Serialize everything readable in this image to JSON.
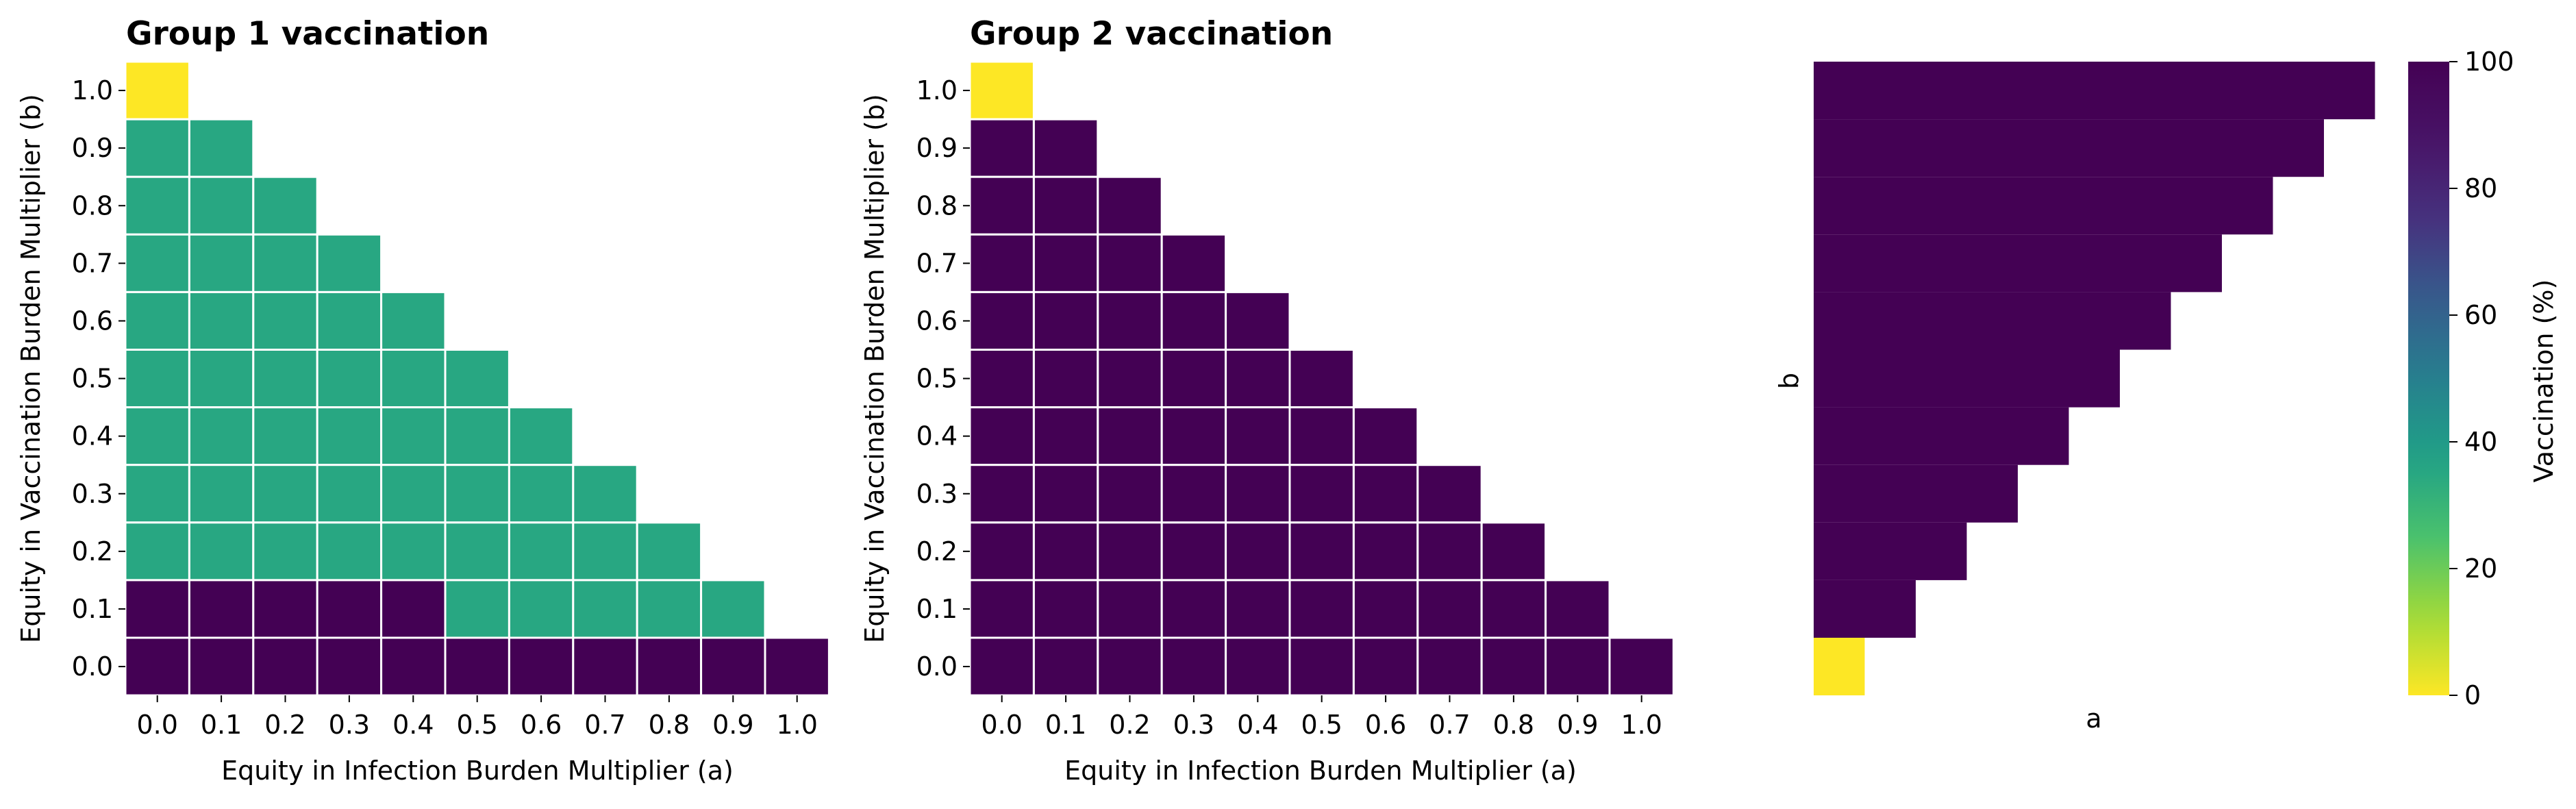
{
  "chart_data": [
    {
      "type": "heatmap",
      "title": "Group 1 vaccination",
      "xlabel": "Equity in Infection Burden Multiplier (a)",
      "ylabel": "Equity in Vaccination Burden Multiplier (b)",
      "x": [
        "0.0",
        "0.1",
        "0.2",
        "0.3",
        "0.4",
        "0.5",
        "0.6",
        "0.7",
        "0.8",
        "0.9",
        "1.0"
      ],
      "y": [
        "1.0",
        "0.9",
        "0.8",
        "0.7",
        "0.6",
        "0.5",
        "0.4",
        "0.3",
        "0.2",
        "0.1",
        "0.0"
      ],
      "values": [
        [
          0,
          null,
          null,
          null,
          null,
          null,
          null,
          null,
          null,
          null,
          null
        ],
        [
          35,
          35,
          null,
          null,
          null,
          null,
          null,
          null,
          null,
          null,
          null
        ],
        [
          35,
          35,
          35,
          null,
          null,
          null,
          null,
          null,
          null,
          null,
          null
        ],
        [
          35,
          35,
          35,
          35,
          null,
          null,
          null,
          null,
          null,
          null,
          null
        ],
        [
          35,
          35,
          35,
          35,
          35,
          null,
          null,
          null,
          null,
          null,
          null
        ],
        [
          35,
          35,
          35,
          35,
          35,
          35,
          null,
          null,
          null,
          null,
          null
        ],
        [
          35,
          35,
          35,
          35,
          35,
          35,
          35,
          null,
          null,
          null,
          null
        ],
        [
          35,
          35,
          35,
          35,
          35,
          35,
          35,
          35,
          null,
          null,
          null
        ],
        [
          35,
          35,
          35,
          35,
          35,
          35,
          35,
          35,
          35,
          null,
          null
        ],
        [
          100,
          100,
          100,
          100,
          100,
          35,
          35,
          35,
          35,
          35,
          null
        ],
        [
          100,
          100,
          100,
          100,
          100,
          100,
          100,
          100,
          100,
          100,
          100
        ]
      ]
    },
    {
      "type": "heatmap",
      "title": "Group 2 vaccination",
      "xlabel": "Equity in Infection Burden Multiplier (a)",
      "ylabel": "Equity in Vaccination Burden Multiplier (b)",
      "x": [
        "0.0",
        "0.1",
        "0.2",
        "0.3",
        "0.4",
        "0.5",
        "0.6",
        "0.7",
        "0.8",
        "0.9",
        "1.0"
      ],
      "y": [
        "1.0",
        "0.9",
        "0.8",
        "0.7",
        "0.6",
        "0.5",
        "0.4",
        "0.3",
        "0.2",
        "0.1",
        "0.0"
      ],
      "values": [
        [
          0,
          null,
          null,
          null,
          null,
          null,
          null,
          null,
          null,
          null,
          null
        ],
        [
          100,
          100,
          null,
          null,
          null,
          null,
          null,
          null,
          null,
          null,
          null
        ],
        [
          100,
          100,
          100,
          null,
          null,
          null,
          null,
          null,
          null,
          null,
          null
        ],
        [
          100,
          100,
          100,
          100,
          null,
          null,
          null,
          null,
          null,
          null,
          null
        ],
        [
          100,
          100,
          100,
          100,
          100,
          null,
          null,
          null,
          null,
          null,
          null
        ],
        [
          100,
          100,
          100,
          100,
          100,
          100,
          null,
          null,
          null,
          null,
          null
        ],
        [
          100,
          100,
          100,
          100,
          100,
          100,
          100,
          null,
          null,
          null,
          null
        ],
        [
          100,
          100,
          100,
          100,
          100,
          100,
          100,
          100,
          null,
          null,
          null
        ],
        [
          100,
          100,
          100,
          100,
          100,
          100,
          100,
          100,
          100,
          null,
          null
        ],
        [
          100,
          100,
          100,
          100,
          100,
          100,
          100,
          100,
          100,
          100,
          null
        ],
        [
          100,
          100,
          100,
          100,
          100,
          100,
          100,
          100,
          100,
          100,
          100
        ]
      ]
    },
    {
      "type": "heatmap",
      "title": "",
      "xlabel": "a",
      "ylabel": "b",
      "x_count": 11,
      "y_count": 11,
      "values": [
        [
          100,
          100,
          100,
          100,
          100,
          100,
          100,
          100,
          100,
          100,
          100
        ],
        [
          100,
          100,
          100,
          100,
          100,
          100,
          100,
          100,
          100,
          100,
          null
        ],
        [
          100,
          100,
          100,
          100,
          100,
          100,
          100,
          100,
          100,
          null,
          null
        ],
        [
          100,
          100,
          100,
          100,
          100,
          100,
          100,
          100,
          null,
          null,
          null
        ],
        [
          100,
          100,
          100,
          100,
          100,
          100,
          100,
          null,
          null,
          null,
          null
        ],
        [
          100,
          100,
          100,
          100,
          100,
          100,
          null,
          null,
          null,
          null,
          null
        ],
        [
          100,
          100,
          100,
          100,
          100,
          null,
          null,
          null,
          null,
          null,
          null
        ],
        [
          100,
          100,
          100,
          100,
          null,
          null,
          null,
          null,
          null,
          null,
          null
        ],
        [
          100,
          100,
          100,
          null,
          null,
          null,
          null,
          null,
          null,
          null,
          null
        ],
        [
          100,
          100,
          null,
          null,
          null,
          null,
          null,
          null,
          null,
          null,
          null
        ],
        [
          0,
          null,
          null,
          null,
          null,
          null,
          null,
          null,
          null,
          null,
          null
        ]
      ],
      "colorbar": {
        "label": "Vaccination (%)",
        "range": [
          0,
          100
        ],
        "ticks": [
          "0",
          "20",
          "40",
          "60",
          "80",
          "100"
        ],
        "colormap": "viridis_r"
      }
    }
  ]
}
